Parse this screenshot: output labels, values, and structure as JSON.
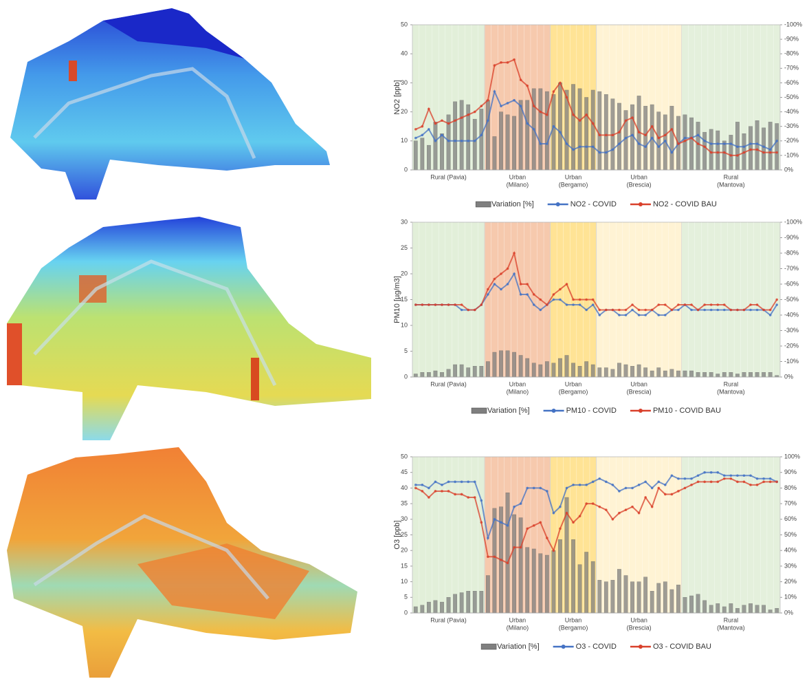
{
  "chart_data": [
    {
      "type": "combo",
      "y_label": "NO2 [ppb]",
      "ylim": [
        0,
        50
      ],
      "yticks": [
        0,
        10,
        20,
        30,
        40,
        50
      ],
      "y2lim": [
        0,
        -100
      ],
      "y2ticks": [
        {
          "value": -100,
          "label": "-100%"
        },
        {
          "value": -90,
          "label": "-90%"
        },
        {
          "value": -80,
          "label": "-80%"
        },
        {
          "value": -70,
          "label": "-70%"
        },
        {
          "value": -60,
          "label": "-60%"
        },
        {
          "value": -50,
          "label": "-50%"
        },
        {
          "value": -40,
          "label": "-40%"
        },
        {
          "value": -30,
          "label": "-30%"
        },
        {
          "value": -20,
          "label": "-20%"
        },
        {
          "value": -10,
          "label": "-10%"
        },
        {
          "value": 0,
          "label": "0%"
        }
      ],
      "zones": [
        {
          "label": [
            "Rural (Pavia)"
          ],
          "count": 11,
          "color": "#e2efd9"
        },
        {
          "label": [
            "Urban",
            "(Milano)"
          ],
          "count": 10,
          "color": "#f6c9ad"
        },
        {
          "label": [
            "Urban",
            "(Bergamo)"
          ],
          "count": 7,
          "color": "#ffe395"
        },
        {
          "label": [
            "Urban",
            "(Brescia)"
          ],
          "count": 13,
          "color": "#fff3d4"
        },
        {
          "label": [
            "Rural",
            "(Mantova)"
          ],
          "count": 15,
          "color": "#e4f0dc"
        }
      ],
      "series": [
        {
          "name": "Variation [%]",
          "type": "bar",
          "axis": "y2",
          "color": "#7f7f7f",
          "values": [
            -20,
            -22,
            -17,
            -33,
            -25,
            -38,
            -47,
            -48,
            -45,
            -35,
            -42,
            -48,
            -23,
            -40,
            -38,
            -37,
            -48,
            -48,
            -56,
            -56,
            -54,
            -52,
            -60,
            -55,
            -59,
            -56,
            -50,
            -55,
            -54,
            -52,
            -49,
            -46,
            -41,
            -45,
            -51,
            -44,
            -45,
            -40,
            -38,
            -44,
            -37,
            -38,
            -36,
            -33,
            -26,
            -28,
            -27,
            -20,
            -24,
            -33,
            -25,
            -30,
            -34,
            -29,
            -33,
            -32
          ]
        },
        {
          "name": "NO2 - COVID",
          "type": "line",
          "color": "#4472c4",
          "values": [
            11,
            12,
            14,
            10,
            12,
            10,
            10,
            10,
            10,
            10,
            12,
            17,
            27,
            22,
            23,
            24,
            22,
            16,
            14,
            9,
            9,
            15,
            13,
            9,
            7,
            8,
            8,
            8,
            6,
            6,
            7,
            9,
            11,
            12,
            9,
            8,
            11,
            8,
            10,
            6,
            9,
            11,
            11,
            12,
            10,
            9,
            9,
            9,
            9,
            8,
            8,
            9,
            9,
            8,
            7,
            10
          ]
        },
        {
          "name": "NO2 - COVID BAU",
          "type": "line",
          "color": "#d9402b",
          "values": [
            14,
            15,
            21,
            16,
            17,
            16,
            17,
            18,
            19,
            20,
            22,
            24,
            36,
            37,
            37,
            38,
            31,
            29,
            22,
            20,
            19,
            27,
            30,
            25,
            19,
            17,
            19,
            16,
            12,
            12,
            12,
            13,
            17,
            18,
            13,
            12,
            15,
            11,
            12,
            14,
            9,
            10,
            11,
            9,
            8,
            6,
            6,
            6,
            5,
            5,
            6,
            7,
            7,
            6,
            6,
            6
          ]
        }
      ]
    },
    {
      "type": "combo",
      "y_label": "PM10 [µg/m3]",
      "ylim": [
        0,
        30
      ],
      "yticks": [
        0,
        5,
        10,
        15,
        20,
        25,
        30
      ],
      "y2lim": [
        0,
        -100
      ],
      "y2ticks": [
        {
          "value": -100,
          "label": "-100%"
        },
        {
          "value": -90,
          "label": "-90%"
        },
        {
          "value": -80,
          "label": "-80%"
        },
        {
          "value": -70,
          "label": "-70%"
        },
        {
          "value": -60,
          "label": "-60%"
        },
        {
          "value": -50,
          "label": "-50%"
        },
        {
          "value": -40,
          "label": "-40%"
        },
        {
          "value": -30,
          "label": "-30%"
        },
        {
          "value": -20,
          "label": "-20%"
        },
        {
          "value": -10,
          "label": "-10%"
        },
        {
          "value": 0,
          "label": "0%"
        }
      ],
      "zones": [
        {
          "label": [
            "Rural (Pavia)"
          ],
          "count": 11,
          "color": "#e2efd9"
        },
        {
          "label": [
            "Urban",
            "(Milano)"
          ],
          "count": 10,
          "color": "#f6c9ad"
        },
        {
          "label": [
            "Urban",
            "(Bergamo)"
          ],
          "count": 7,
          "color": "#ffe395"
        },
        {
          "label": [
            "Urban",
            "(Brescia)"
          ],
          "count": 13,
          "color": "#fff3d4"
        },
        {
          "label": [
            "Rural",
            "(Mantova)"
          ],
          "count": 15,
          "color": "#e4f0dc"
        }
      ],
      "series": [
        {
          "name": "Variation [%]",
          "type": "bar",
          "axis": "y2",
          "color": "#7f7f7f",
          "values": [
            -2,
            -3,
            -3,
            -4,
            -3,
            -5,
            -8,
            -8,
            -6,
            -7,
            -7,
            -10,
            -16,
            -17,
            -17,
            -16,
            -14,
            -12,
            -9,
            -8,
            -10,
            -9,
            -12,
            -14,
            -9,
            -7,
            -10,
            -8,
            -6,
            -6,
            -5,
            -9,
            -8,
            -7,
            -8,
            -6,
            -4,
            -6,
            -4,
            -5,
            -4,
            -4,
            -4,
            -3,
            -3,
            -3,
            -2,
            -3,
            -3,
            -2,
            -3,
            -3,
            -3,
            -3,
            -3,
            -1
          ]
        },
        {
          "name": "PM10 - COVID",
          "type": "line",
          "color": "#4472c4",
          "values": [
            14,
            14,
            14,
            14,
            14,
            14,
            14,
            13,
            13,
            13,
            14,
            16,
            18,
            17,
            18,
            20,
            16,
            16,
            14,
            13,
            14,
            15,
            15,
            14,
            14,
            14,
            13,
            14,
            12,
            13,
            13,
            12,
            12,
            13,
            12,
            12,
            13,
            12,
            12,
            13,
            13,
            14,
            13,
            13,
            13,
            13,
            13,
            13,
            13,
            13,
            13,
            13,
            13,
            13,
            12,
            14
          ]
        },
        {
          "name": "PM10 - COVID BAU",
          "type": "line",
          "color": "#d9402b",
          "values": [
            14,
            14,
            14,
            14,
            14,
            14,
            14,
            14,
            13,
            13,
            14,
            17,
            19,
            20,
            21,
            24,
            18,
            18,
            16,
            15,
            14,
            16,
            17,
            18,
            15,
            15,
            15,
            15,
            13,
            13,
            13,
            13,
            13,
            14,
            13,
            13,
            13,
            14,
            14,
            13,
            14,
            14,
            14,
            13,
            14,
            14,
            14,
            14,
            13,
            13,
            13,
            14,
            14,
            13,
            13,
            15
          ]
        }
      ]
    },
    {
      "type": "combo",
      "y_label": "O3   [ppb]",
      "ylim": [
        0,
        50
      ],
      "yticks": [
        0,
        5,
        10,
        15,
        20,
        25,
        30,
        35,
        40,
        45,
        50
      ],
      "y2lim": [
        0,
        100
      ],
      "y2ticks": [
        {
          "value": 0,
          "label": "0%"
        },
        {
          "value": 10,
          "label": "10%"
        },
        {
          "value": 20,
          "label": "20%"
        },
        {
          "value": 30,
          "label": "30%"
        },
        {
          "value": 40,
          "label": "40%"
        },
        {
          "value": 50,
          "label": "50%"
        },
        {
          "value": 60,
          "label": "60%"
        },
        {
          "value": 70,
          "label": "70%"
        },
        {
          "value": 80,
          "label": "80%"
        },
        {
          "value": 90,
          "label": "90%"
        },
        {
          "value": 100,
          "label": "100%"
        }
      ],
      "zones": [
        {
          "label": [
            "Rural (Pavia)"
          ],
          "count": 11,
          "color": "#e2efd9"
        },
        {
          "label": [
            "Urban",
            "(Milano)"
          ],
          "count": 10,
          "color": "#f6c9ad"
        },
        {
          "label": [
            "Urban",
            "(Bergamo)"
          ],
          "count": 7,
          "color": "#ffe395"
        },
        {
          "label": [
            "Urban",
            "(Brescia)"
          ],
          "count": 13,
          "color": "#fff3d4"
        },
        {
          "label": [
            "Rural",
            "(Mantova)"
          ],
          "count": 15,
          "color": "#e4f0dc"
        }
      ],
      "series": [
        {
          "name": "Variation [%]",
          "type": "bar",
          "axis": "y2",
          "color": "#7f7f7f",
          "values": [
            4,
            5,
            7,
            8,
            7,
            10,
            12,
            13,
            14,
            14,
            14,
            24,
            67,
            68,
            77,
            63,
            61,
            42,
            41,
            38,
            37,
            40,
            47,
            74,
            47,
            31,
            39,
            33,
            21,
            20,
            21,
            28,
            24,
            20,
            20,
            23,
            14,
            19,
            20,
            15,
            18,
            10,
            11,
            12,
            8,
            5,
            6,
            4,
            6,
            3,
            5,
            6,
            5,
            5,
            2,
            3
          ]
        },
        {
          "name": "O3 - COVID",
          "type": "line",
          "color": "#4472c4",
          "values": [
            41,
            41,
            40,
            42,
            41,
            42,
            42,
            42,
            42,
            42,
            36,
            24,
            30,
            29,
            28,
            34,
            35,
            40,
            40,
            40,
            39,
            32,
            34,
            40,
            41,
            41,
            41,
            42,
            43,
            42,
            41,
            39,
            40,
            40,
            41,
            42,
            40,
            42,
            41,
            44,
            43,
            43,
            43,
            44,
            45,
            45,
            45,
            44,
            44,
            44,
            44,
            44,
            43,
            43,
            43,
            42
          ]
        },
        {
          "name": "O3 - COVID BAU",
          "type": "line",
          "color": "#d9402b",
          "values": [
            40,
            39,
            37,
            39,
            39,
            39,
            38,
            38,
            37,
            37,
            29,
            18,
            18,
            17,
            16,
            21,
            21,
            27,
            28,
            29,
            24,
            20,
            27,
            32,
            29,
            31,
            35,
            35,
            34,
            33,
            30,
            32,
            33,
            34,
            32,
            37,
            34,
            40,
            38,
            38,
            39,
            40,
            41,
            42,
            42,
            42,
            42,
            43,
            43,
            42,
            42,
            41,
            41,
            42,
            42,
            42
          ]
        }
      ]
    }
  ]
}
